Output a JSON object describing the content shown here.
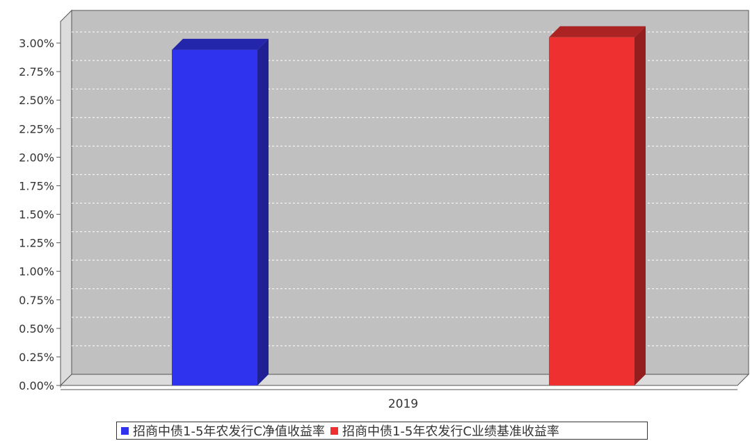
{
  "chart_data": {
    "type": "bar",
    "categories": [
      "2019"
    ],
    "series": [
      {
        "name": "招商中债1-5年农发行C净值收益率",
        "values": [
          2.94
        ],
        "color": "#3033ee"
      },
      {
        "name": "招商中债1-5年农发行C业绩基准收益率",
        "values": [
          3.05
        ],
        "color": "#ee3030"
      }
    ],
    "ylim": [
      0,
      3.0
    ],
    "yticks": [
      "0.00%",
      "0.25%",
      "0.50%",
      "0.75%",
      "1.00%",
      "1.25%",
      "1.50%",
      "1.75%",
      "2.00%",
      "2.25%",
      "2.50%",
      "2.75%",
      "3.00%"
    ],
    "grid": true,
    "legend_position": "bottom",
    "style": "3d"
  }
}
